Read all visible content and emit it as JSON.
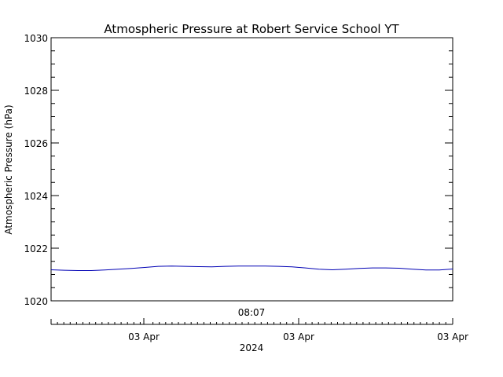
{
  "chart_data": {
    "type": "line",
    "title": "Atmospheric Pressure at Robert Service School YT",
    "ylabel": "Atmospheric Pressure (hPa)",
    "ylim": [
      1020,
      1030
    ],
    "y_ticks": [
      "1020",
      "1022",
      "1024",
      "1026",
      "1028",
      "1030"
    ],
    "x_top_label": "08:07",
    "x_tick_labels": [
      "03 Apr",
      "03 Apr",
      "03 Apr"
    ],
    "xlabel": "2024",
    "grid": false,
    "colors": {
      "line": "#0000b4",
      "axes": "#000000",
      "background": "#ffffff"
    },
    "series": [
      {
        "values": [
          1021.18,
          1021.16,
          1021.15,
          1021.15,
          1021.17,
          1021.2,
          1021.23,
          1021.27,
          1021.31,
          1021.32,
          1021.31,
          1021.3,
          1021.29,
          1021.31,
          1021.32,
          1021.32,
          1021.32,
          1021.31,
          1021.29,
          1021.25,
          1021.2,
          1021.18,
          1021.2,
          1021.23,
          1021.25,
          1021.25,
          1021.24,
          1021.2,
          1021.17,
          1021.17,
          1021.21
        ]
      }
    ]
  }
}
